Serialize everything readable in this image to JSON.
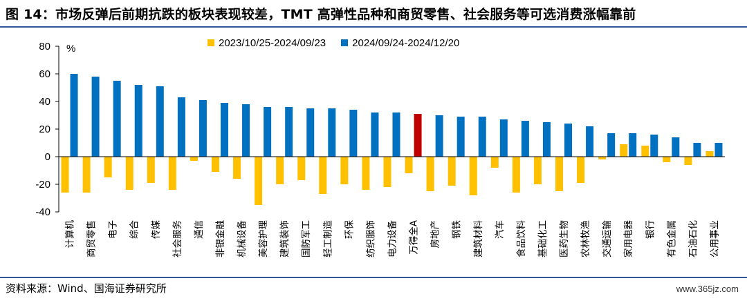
{
  "header": {
    "title": "图 14：市场反弹后前期抗跌的板块表现较差，TMT 高弹性品种和商贸零售、社会服务等可选消费涨幅靠前"
  },
  "footer": {
    "source": "资料来源：Wind、国海证券研究所",
    "watermark": "www.365jz.com"
  },
  "chart_data": {
    "type": "bar",
    "unit_label": "%",
    "ylim": [
      -40,
      80
    ],
    "yticks": [
      -40,
      -20,
      0,
      20,
      40,
      60,
      80
    ],
    "grid": false,
    "legend_position": "top-center",
    "categories": [
      "计算机",
      "商贸零售",
      "电子",
      "综合",
      "传媒",
      "社会服务",
      "通信",
      "非银金融",
      "机械设备",
      "美容护理",
      "建筑装饰",
      "国防军工",
      "轻工制造",
      "环保",
      "纺织服饰",
      "电力设备",
      "万得全A",
      "房地产",
      "钢铁",
      "建筑材料",
      "汽车",
      "食品饮料",
      "基础化工",
      "医药生物",
      "农林牧渔",
      "交通运输",
      "家用电器",
      "银行",
      "有色金属",
      "石油石化",
      "公用事业"
    ],
    "highlight_index": 16,
    "colors": {
      "series1": "#ffc000",
      "series2": "#0070c0",
      "highlight": "#c00000"
    },
    "series": [
      {
        "name": "2023/10/25-2024/09/23",
        "values": [
          -26,
          -26,
          -15,
          -24,
          -19,
          -24,
          -3,
          -11,
          -16,
          -35,
          -20,
          -17,
          -27,
          -20,
          -24,
          -22,
          -12,
          -25,
          -21,
          -28,
          -8,
          -26,
          -20,
          -25,
          -19,
          -2,
          9,
          8,
          -4,
          -6,
          4
        ]
      },
      {
        "name": "2024/09/24-2024/12/20",
        "values": [
          60,
          58,
          55,
          52,
          51,
          43,
          41,
          39,
          38,
          36,
          36,
          35,
          35,
          34,
          32,
          32,
          31,
          30,
          29,
          29,
          27,
          26,
          25,
          24,
          22,
          17,
          17,
          16,
          14,
          10,
          10
        ]
      }
    ]
  }
}
